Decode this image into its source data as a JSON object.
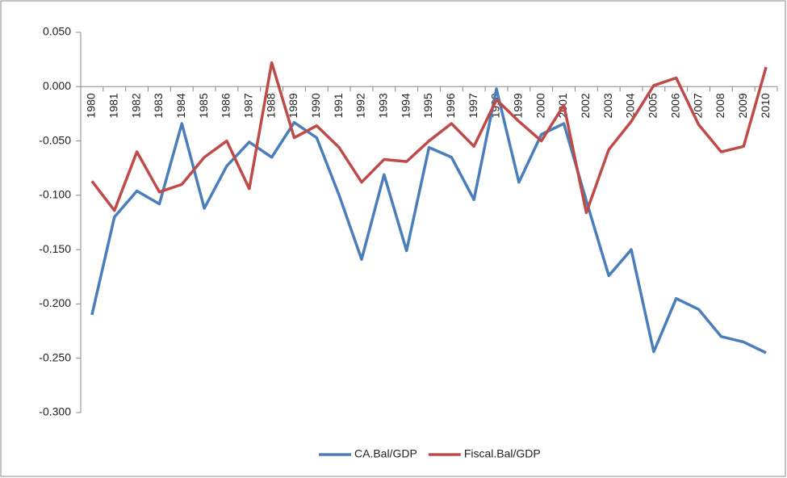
{
  "chart_data": {
    "type": "line",
    "categories": [
      "1980",
      "1981",
      "1982",
      "1983",
      "1984",
      "1985",
      "1986",
      "1987",
      "1988",
      "1989",
      "1990",
      "1991",
      "1992",
      "1993",
      "1994",
      "1995",
      "1996",
      "1997",
      "1998",
      "1999",
      "2000",
      "2001",
      "2002",
      "2003",
      "2004",
      "2005",
      "2006",
      "2007",
      "2008",
      "2009",
      "2010"
    ],
    "series": [
      {
        "name": "CA.Bal/GDP",
        "color": "#4a7ebb",
        "values": [
          -0.21,
          -0.12,
          -0.096,
          -0.108,
          -0.034,
          -0.112,
          -0.073,
          -0.051,
          -0.065,
          -0.033,
          -0.047,
          -0.1,
          -0.159,
          -0.081,
          -0.151,
          -0.056,
          -0.065,
          -0.104,
          -0.002,
          -0.088,
          -0.044,
          -0.034,
          -0.105,
          -0.174,
          -0.15,
          -0.244,
          -0.195,
          -0.205,
          -0.23,
          -0.235,
          -0.245
        ]
      },
      {
        "name": "Fiscal.Bal/GDP",
        "color": "#be4b48",
        "values": [
          -0.087,
          -0.114,
          -0.06,
          -0.097,
          -0.09,
          -0.065,
          -0.05,
          -0.094,
          0.022,
          -0.047,
          -0.036,
          -0.056,
          -0.088,
          -0.067,
          -0.069,
          -0.05,
          -0.034,
          -0.055,
          -0.012,
          -0.032,
          -0.05,
          -0.017,
          -0.116,
          -0.058,
          -0.032,
          0.001,
          0.008,
          -0.035,
          -0.06,
          -0.055,
          0.018
        ]
      }
    ],
    "ylim": [
      -0.3,
      0.05
    ],
    "yticks": [
      {
        "value": 0.05,
        "label": "0.050"
      },
      {
        "value": 0,
        "label": "0.000"
      },
      {
        "value": -0.05,
        "label": "-0.050"
      },
      {
        "value": -0.1,
        "label": "-0.100"
      },
      {
        "value": -0.15,
        "label": "-0.150"
      },
      {
        "value": -0.2,
        "label": "-0.200"
      },
      {
        "value": -0.25,
        "label": "-0.250"
      },
      {
        "value": -0.3,
        "label": "-0.300"
      }
    ],
    "legend": "bottom"
  }
}
